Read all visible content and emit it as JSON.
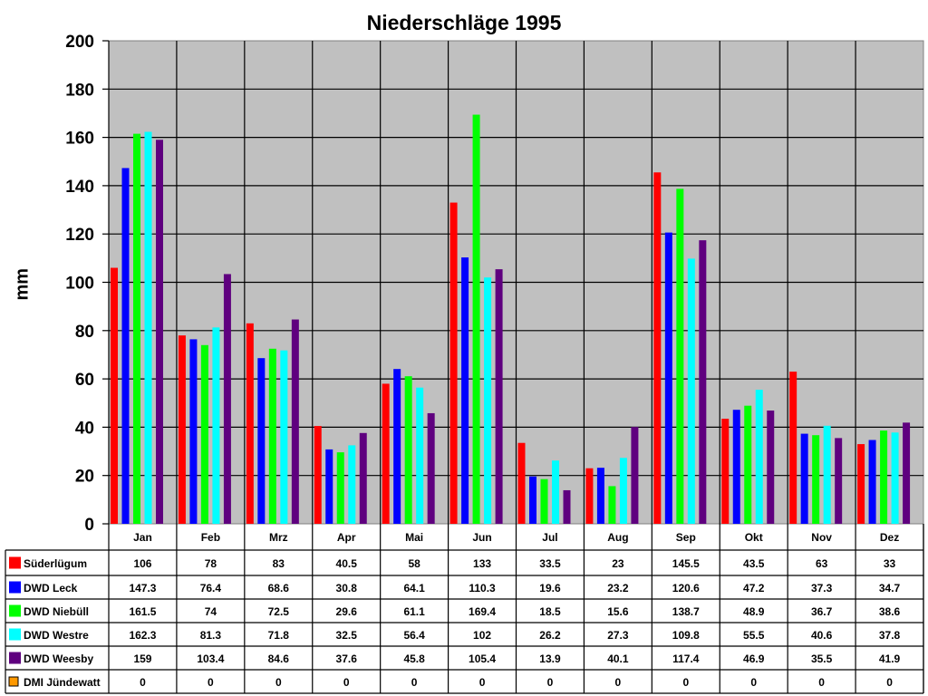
{
  "chart_data": {
    "type": "bar",
    "title": "Niederschläge 1995",
    "xlabel": "",
    "ylabel": "mm",
    "ylim": [
      0,
      200
    ],
    "yticks": [
      0,
      20,
      40,
      60,
      80,
      100,
      120,
      140,
      160,
      180,
      200
    ],
    "grid": true,
    "legend_position": "data-table-left",
    "categories": [
      "Jan",
      "Feb",
      "Mrz",
      "Apr",
      "Mai",
      "Jun",
      "Jul",
      "Aug",
      "Sep",
      "Okt",
      "Nov",
      "Dez"
    ],
    "series": [
      {
        "name": "Süderlügum",
        "color": "#FF0000",
        "values": [
          106,
          78,
          83,
          40.5,
          58,
          133,
          33.5,
          23,
          145.5,
          43.5,
          63,
          33
        ]
      },
      {
        "name": "DWD Leck",
        "color": "#0000FF",
        "values": [
          147.3,
          76.4,
          68.6,
          30.8,
          64.1,
          110.3,
          19.6,
          23.2,
          120.6,
          47.2,
          37.3,
          34.7
        ]
      },
      {
        "name": "DWD Niebüll",
        "color": "#00FF00",
        "values": [
          161.5,
          74,
          72.5,
          29.6,
          61.1,
          169.4,
          18.5,
          15.6,
          138.7,
          48.9,
          36.7,
          38.6
        ]
      },
      {
        "name": "DWD Westre",
        "color": "#00FFFF",
        "values": [
          162.3,
          81.3,
          71.8,
          32.5,
          56.4,
          102,
          26.2,
          27.3,
          109.8,
          55.5,
          40.6,
          37.8
        ]
      },
      {
        "name": "DWD Weesby",
        "color": "#5F007F",
        "values": [
          159,
          103.4,
          84.6,
          37.6,
          45.8,
          105.4,
          13.9,
          40.1,
          117.4,
          46.9,
          35.5,
          41.9
        ]
      },
      {
        "name": "DMI Jündewatt",
        "color": "#FF9900",
        "values": [
          0,
          0,
          0,
          0,
          0,
          0,
          0,
          0,
          0,
          0,
          0,
          0
        ]
      }
    ]
  },
  "style": {
    "plot_bg": "#C0C0C0",
    "grid_color": "#000000"
  }
}
